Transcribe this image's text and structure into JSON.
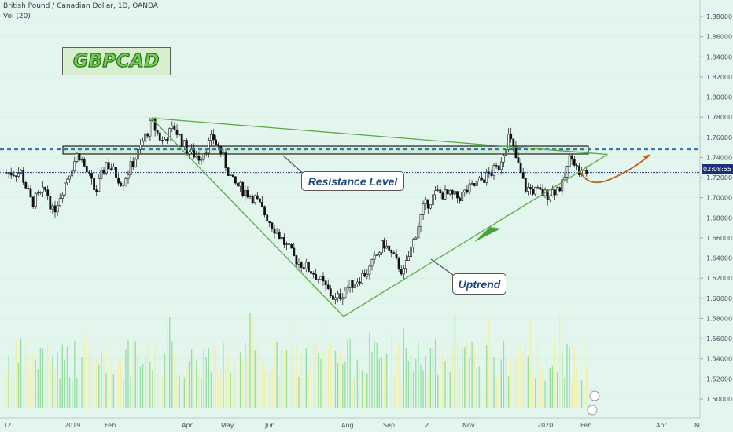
{
  "header": {
    "title": "British Pound / Canadian Dollar, 1D, OANDA",
    "volume_label": "Vol (20)"
  },
  "logo": {
    "text": "GBPCAD"
  },
  "annotations": {
    "resistance": "Resistance Level",
    "uptrend": "Uptrend"
  },
  "price_badge": "02:08:55",
  "colors": {
    "background": "#e3f6ee",
    "candle": "#111111",
    "trendline": "#5aa84a",
    "resistance_dash": "#2e6fa0",
    "price_line": "#1e2f7a",
    "volume_green": "#8fdc9a",
    "volume_yellow": "#f2efa0",
    "projection": "#c0601a"
  },
  "chart_data": {
    "type": "candlestick",
    "title": "British Pound / Canadian Dollar, 1D, OANDA",
    "ylim": [
      1.49,
      1.895
    ],
    "y_ticks": [
      "1.50000",
      "1.52000",
      "1.54000",
      "1.56000",
      "1.58000",
      "1.60000",
      "1.62000",
      "1.64000",
      "1.66000",
      "1.68000",
      "1.70000",
      "1.72000",
      "1.74000",
      "1.76000",
      "1.78000",
      "1.80000",
      "1.82000",
      "1.84000",
      "1.86000",
      "1.88000"
    ],
    "x_labels": [
      "12",
      "2019",
      "Feb",
      "Apr",
      "May",
      "Jun",
      "Aug",
      "Sep",
      "2",
      "Nov",
      "2020",
      "Feb",
      "Apr",
      "M"
    ],
    "resistance_level": 1.748,
    "current_price": 1.725,
    "price_path": [
      {
        "date": "2018-12-12",
        "price": 1.725
      },
      {
        "date": "2018-12-20",
        "price": 1.695
      },
      {
        "date": "2018-12-31",
        "price": 1.708
      },
      {
        "date": "2019-01-05",
        "price": 1.685
      },
      {
        "date": "2019-01-14",
        "price": 1.715
      },
      {
        "date": "2019-01-24",
        "price": 1.745
      },
      {
        "date": "2019-02-06",
        "price": 1.705
      },
      {
        "date": "2019-02-14",
        "price": 1.735
      },
      {
        "date": "2019-02-26",
        "price": 1.715
      },
      {
        "date": "2019-03-10",
        "price": 1.745
      },
      {
        "date": "2019-03-20",
        "price": 1.775
      },
      {
        "date": "2019-03-28",
        "price": 1.755
      },
      {
        "date": "2019-04-06",
        "price": 1.77
      },
      {
        "date": "2019-04-15",
        "price": 1.748
      },
      {
        "date": "2019-04-25",
        "price": 1.74
      },
      {
        "date": "2019-05-05",
        "price": 1.76
      },
      {
        "date": "2019-05-10",
        "price": 1.748
      },
      {
        "date": "2019-05-20",
        "price": 1.715
      },
      {
        "date": "2019-06-05",
        "price": 1.7
      },
      {
        "date": "2019-06-20",
        "price": 1.67
      },
      {
        "date": "2019-07-05",
        "price": 1.64
      },
      {
        "date": "2019-07-20",
        "price": 1.625
      },
      {
        "date": "2019-08-05",
        "price": 1.598
      },
      {
        "date": "2019-08-15",
        "price": 1.612
      },
      {
        "date": "2019-08-30",
        "price": 1.628
      },
      {
        "date": "2019-09-10",
        "price": 1.655
      },
      {
        "date": "2019-09-25",
        "price": 1.625
      },
      {
        "date": "2019-10-10",
        "price": 1.69
      },
      {
        "date": "2019-10-20",
        "price": 1.705
      },
      {
        "date": "2019-11-05",
        "price": 1.7
      },
      {
        "date": "2019-11-20",
        "price": 1.715
      },
      {
        "date": "2019-12-05",
        "price": 1.73
      },
      {
        "date": "2019-12-13",
        "price": 1.762
      },
      {
        "date": "2019-12-25",
        "price": 1.71
      },
      {
        "date": "2020-01-10",
        "price": 1.703
      },
      {
        "date": "2020-01-22",
        "price": 1.712
      },
      {
        "date": "2020-01-29",
        "price": 1.745
      },
      {
        "date": "2020-02-03",
        "price": 1.725
      }
    ],
    "trendlines": [
      {
        "name": "upper-line",
        "from": {
          "date": "2019-03-20",
          "price": 1.779
        },
        "to": {
          "date": "2020-02-25",
          "price": 1.743
        }
      },
      {
        "name": "descending-leg",
        "from": {
          "date": "2019-03-20",
          "price": 1.779
        },
        "to": {
          "date": "2019-08-11",
          "price": 1.582
        }
      },
      {
        "name": "uptrend-line",
        "from": {
          "date": "2019-08-11",
          "price": 1.582
        },
        "to": {
          "date": "2020-02-25",
          "price": 1.743
        }
      }
    ],
    "projection": {
      "from": {
        "date": "2020-02-04",
        "price": 1.728
      },
      "to": {
        "date": "2020-03-28",
        "price": 1.743
      }
    },
    "volume_range": [
      0,
      1
    ]
  }
}
